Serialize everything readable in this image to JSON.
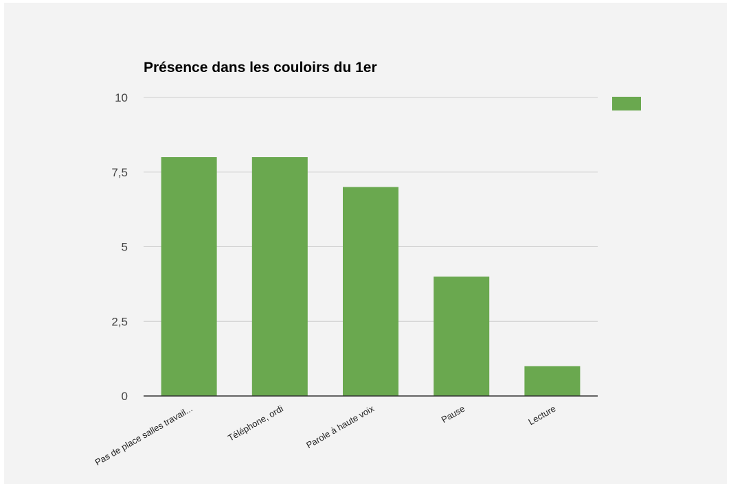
{
  "chart_data": {
    "type": "bar",
    "title": "Présence dans les couloirs du 1er",
    "xlabel": "",
    "ylabel": "",
    "categories": [
      "Pas de place salles travail...",
      "Téléphone, ordi",
      "Parole à haute voix",
      "Pause",
      "Lecture"
    ],
    "values": [
      8,
      8,
      7,
      4,
      1
    ],
    "ylim": [
      0,
      10
    ],
    "yticks": [
      0,
      2.5,
      5,
      7.5,
      10
    ],
    "ytick_labels": [
      "0",
      "2,5",
      "5",
      "7,5",
      "10"
    ],
    "grid": true,
    "legend": {
      "position": "top-right",
      "entries": [
        {
          "name": "",
          "color": "#6aa84f"
        }
      ]
    },
    "colors": {
      "bar": "#6aa84f",
      "background": "#f3f3f3",
      "grid": "#cccccc",
      "axis": "#333333"
    }
  }
}
